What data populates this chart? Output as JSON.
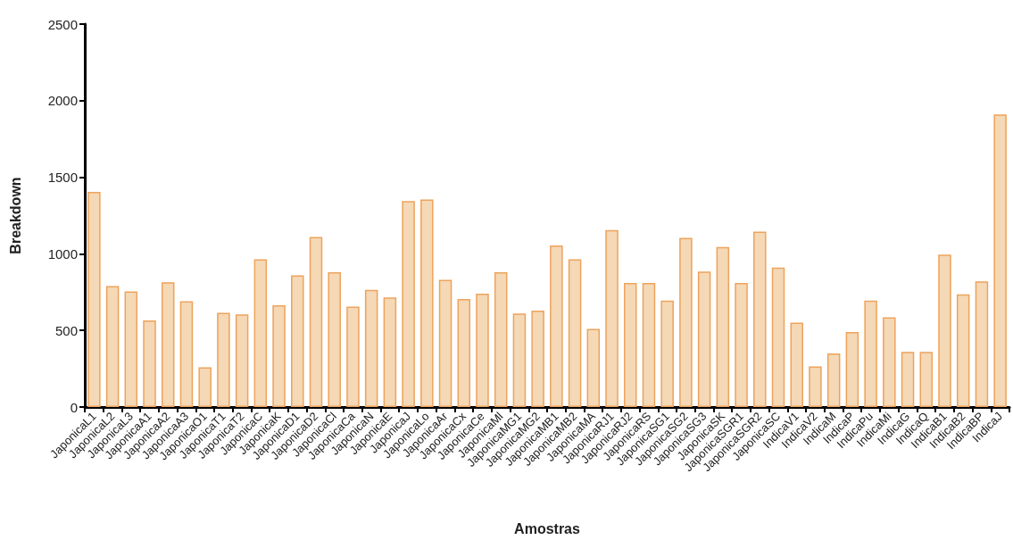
{
  "chart_data": {
    "type": "bar",
    "xlabel": "Amostras",
    "ylabel": "Breakdown",
    "categories": [
      "JaponicaL1",
      "JaponicaL2",
      "JaponicaL3",
      "JaponicaA1",
      "JaponicaA2",
      "JaponicaA3",
      "JaponicaO1",
      "JaponicaT1",
      "JaponicaT2",
      "JaponicaC",
      "JaponicaK",
      "JaponicaD1",
      "JaponicaD2",
      "JaponicaCl",
      "JaponicaCa",
      "JaponicaN",
      "JaponicaE",
      "JaponicaJ",
      "JaponicaLo",
      "JaponicaAr",
      "JaponicaCx",
      "JaponicaCe",
      "JaponicaMl",
      "JaponicaMG1",
      "JaponicaMG2",
      "JaponicaMB1",
      "JaponicaMB2",
      "JaponicaMA",
      "JaponicaRJ1",
      "JaponicaRJ2",
      "JaponicaRS",
      "JaponicaSG1",
      "JaponicaSG2",
      "JaponicaSG3",
      "JaponicaSK",
      "JaponicaSGR1",
      "JaponicaSGR2",
      "JaponicaSC",
      "IndicaV1",
      "IndicaV2",
      "IndicaM",
      "IndicaP",
      "IndicaPu",
      "IndicaMi",
      "IndicaG",
      "IndicaQ",
      "IndicaB1",
      "IndicaB2",
      "IndicaBP",
      "IndicaJ"
    ],
    "values": [
      1405,
      790,
      755,
      565,
      815,
      690,
      260,
      615,
      605,
      965,
      665,
      860,
      1110,
      880,
      655,
      765,
      715,
      1345,
      1355,
      830,
      705,
      740,
      880,
      610,
      630,
      1055,
      965,
      510,
      1155,
      810,
      810,
      695,
      1105,
      885,
      1045,
      810,
      1145,
      910,
      550,
      265,
      350,
      490,
      695,
      585,
      360,
      360,
      995,
      735,
      820,
      1910
    ],
    "color": "#f5d8b5",
    "ylim": [
      0,
      2500
    ],
    "yticks": [
      0,
      500,
      1000,
      1500,
      2000,
      2500
    ],
    "grid": false
  }
}
